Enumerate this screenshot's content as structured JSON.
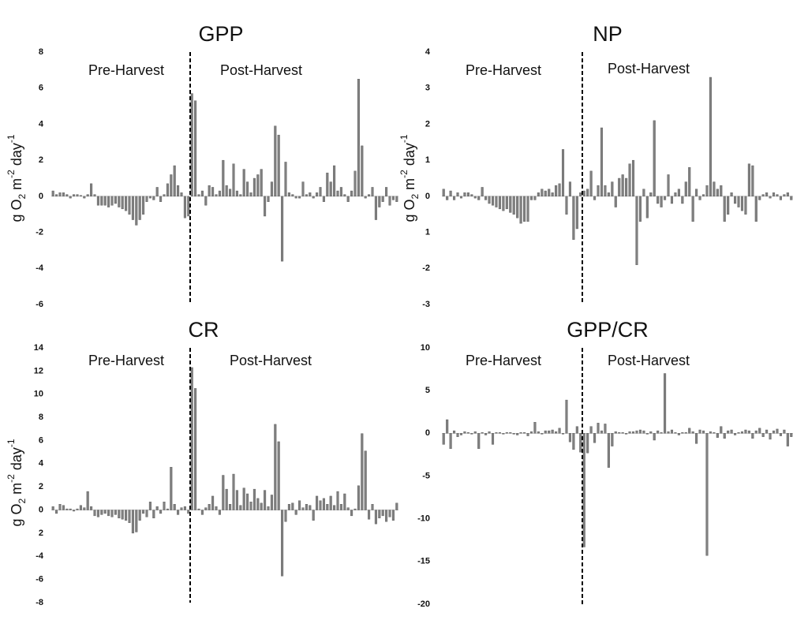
{
  "chart_data": [
    {
      "type": "bar",
      "title": "GPP",
      "ylabel": [
        "g O",
        "2",
        " m",
        "-2",
        " day",
        "-1"
      ],
      "annotations": [
        "Pre-Harvest",
        "Post-Harvest"
      ],
      "harvest_index": 40,
      "color": "#808080",
      "ylim": [
        -6,
        8
      ],
      "yticks": [
        8,
        6,
        4,
        2,
        0,
        -2,
        -4,
        -6
      ],
      "values": [
        0.3,
        0.1,
        0.2,
        0.2,
        0.1,
        -0.1,
        0.1,
        0.1,
        0.05,
        -0.1,
        0.1,
        0.7,
        0.1,
        -0.5,
        -0.5,
        -0.5,
        -0.6,
        -0.5,
        -0.4,
        -0.6,
        -0.7,
        -0.8,
        -1.0,
        -1.3,
        -1.6,
        -1.3,
        -1.0,
        -0.3,
        -0.1,
        -0.2,
        0.5,
        -0.3,
        0.1,
        0.7,
        1.2,
        1.7,
        0.6,
        0.2,
        -1.2,
        -1.1,
        5.7,
        5.3,
        0.1,
        0.3,
        -0.5,
        0.6,
        0.5,
        0.1,
        0.3,
        2.0,
        0.6,
        0.4,
        1.8,
        0.3,
        0.1,
        1.5,
        0.8,
        0.2,
        1.0,
        1.2,
        1.5,
        -1.1,
        -0.3,
        0.8,
        3.9,
        3.4,
        -3.6,
        1.9,
        0.2,
        0.1,
        -0.1,
        -0.1,
        0.8,
        0.1,
        0.2,
        -0.1,
        0.2,
        0.5,
        -0.3,
        1.3,
        0.8,
        1.7,
        0.3,
        0.5,
        0.1,
        -0.3,
        0.3,
        1.4,
        6.5,
        2.8,
        -0.1,
        0.1,
        0.5,
        -1.3,
        -0.6,
        -0.3,
        0.5,
        -0.5,
        -0.2,
        -0.3
      ]
    },
    {
      "type": "bar",
      "title": "NP",
      "ylabel": [
        "g O",
        "2",
        " m",
        "-2",
        " day",
        "-1"
      ],
      "annotations": [
        "Pre-Harvest",
        "Post-Harvest"
      ],
      "harvest_index": 40,
      "color": "#808080",
      "ylim": [
        -3,
        4
      ],
      "yticks": [
        4,
        3,
        2,
        1,
        0,
        {
          "value": -1,
          "label": "1"
        },
        -2,
        -3
      ],
      "values": [
        0.2,
        -0.1,
        0.15,
        -0.1,
        0.1,
        -0.05,
        0.1,
        0.1,
        0.05,
        -0.05,
        -0.1,
        0.25,
        -0.1,
        -0.2,
        -0.25,
        -0.3,
        -0.35,
        -0.4,
        -0.35,
        -0.45,
        -0.5,
        -0.6,
        -0.75,
        -0.7,
        -0.7,
        -0.1,
        -0.1,
        0.1,
        0.2,
        0.15,
        0.2,
        0.1,
        0.3,
        0.35,
        1.3,
        -0.5,
        0.4,
        -1.2,
        -0.9,
        0.1,
        0.15,
        0.2,
        0.7,
        -0.1,
        0.3,
        1.9,
        0.3,
        0.1,
        0.4,
        -0.3,
        0.5,
        0.6,
        0.5,
        0.9,
        1.0,
        -1.9,
        -0.7,
        0.2,
        -0.6,
        0.1,
        2.1,
        -0.2,
        -0.3,
        -0.1,
        0.6,
        -0.2,
        0.1,
        0.2,
        -0.2,
        0.4,
        0.8,
        -0.7,
        0.2,
        -0.1,
        0.05,
        0.3,
        3.3,
        0.4,
        0.2,
        0.3,
        -0.7,
        -0.5,
        0.1,
        -0.2,
        -0.3,
        -0.4,
        -0.5,
        0.9,
        0.85,
        -0.7,
        -0.1,
        0.05,
        0.1,
        -0.05,
        0.1,
        0.05,
        -0.1,
        0.05,
        0.1,
        -0.1
      ]
    },
    {
      "type": "bar",
      "title": "CR",
      "ylabel": [
        "g O",
        "2",
        " m",
        "-2",
        " day",
        "-1"
      ],
      "annotations": [
        "Pre-Harvest",
        "Post-Harvest"
      ],
      "harvest_index": 40,
      "color": "#808080",
      "ylim": [
        -8,
        14
      ],
      "yticks": [
        14,
        12,
        10,
        8,
        6,
        4,
        2,
        0,
        {
          "value": -2,
          "label": "2"
        },
        -4,
        -6,
        -8
      ],
      "values": [
        0.3,
        -0.3,
        0.5,
        0.4,
        0.1,
        0.1,
        -0.1,
        0.1,
        0.4,
        0.2,
        1.6,
        0.3,
        -0.5,
        -0.6,
        -0.4,
        -0.3,
        -0.5,
        -0.6,
        -0.4,
        -0.7,
        -0.8,
        -0.9,
        -1.1,
        -2.0,
        -1.9,
        -0.9,
        -0.3,
        -0.6,
        0.7,
        -0.7,
        0.3,
        -0.3,
        0.7,
        0.1,
        3.7,
        0.5,
        -0.4,
        0.2,
        0.3,
        -0.3,
        12.3,
        10.5,
        0.1,
        -0.4,
        0.2,
        0.5,
        1.2,
        0.3,
        -0.4,
        3.0,
        1.8,
        0.5,
        3.1,
        1.7,
        0.4,
        1.9,
        1.4,
        0.7,
        1.8,
        1.0,
        0.6,
        1.7,
        0.3,
        1.3,
        7.4,
        5.9,
        -5.7,
        -1.0,
        0.5,
        0.6,
        -0.4,
        0.8,
        0.2,
        0.5,
        0.4,
        -0.9,
        1.2,
        0.8,
        1.0,
        0.5,
        1.2,
        0.4,
        1.6,
        0.5,
        1.4,
        0.2,
        -0.5,
        0.1,
        2.1,
        6.6,
        5.1,
        -0.8,
        0.5,
        -1.2,
        -0.7,
        -0.5,
        -1.0,
        -0.6,
        -0.9,
        0.6
      ]
    },
    {
      "type": "bar",
      "title": "GPP/CR",
      "annotations": [
        "Pre-Harvest",
        "Post-Harvest"
      ],
      "harvest_index": 40,
      "color": "#808080",
      "ylim": [
        -20,
        10
      ],
      "yticks": [
        10,
        5,
        0,
        -5,
        -10,
        -15,
        -20
      ],
      "values": [
        -1.3,
        1.6,
        -1.8,
        0.3,
        -0.4,
        -0.2,
        0.2,
        0.1,
        -0.1,
        0.2,
        -1.8,
        0.1,
        -0.2,
        0.2,
        -1.3,
        0.1,
        0.1,
        -0.1,
        0.1,
        0.1,
        -0.1,
        -0.2,
        0.1,
        0.1,
        -0.3,
        0.2,
        1.3,
        0.2,
        -0.1,
        0.3,
        0.3,
        0.4,
        0.2,
        0.6,
        -0.1,
        3.9,
        -1.0,
        -1.9,
        0.8,
        -2.2,
        -13.3,
        -2.3,
        0.8,
        -1.1,
        1.2,
        0.3,
        1.1,
        -4.0,
        -1.5,
        0.2,
        0.1,
        0.1,
        -0.1,
        0.2,
        0.2,
        0.3,
        0.4,
        0.3,
        -0.1,
        0.2,
        -0.8,
        0.3,
        0.1,
        7.0,
        0.2,
        0.4,
        0.1,
        -0.2,
        0.1,
        0.1,
        0.6,
        0.2,
        -1.2,
        0.4,
        0.3,
        -14.3,
        0.2,
        0.1,
        -0.5,
        0.8,
        -0.6,
        0.3,
        0.4,
        -0.2,
        0.1,
        0.2,
        0.4,
        0.3,
        -0.6,
        0.3,
        0.6,
        -0.4,
        0.4,
        -0.7,
        0.3,
        0.5,
        -0.3,
        0.4,
        -1.5,
        -0.4
      ]
    }
  ]
}
